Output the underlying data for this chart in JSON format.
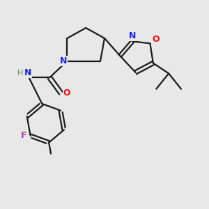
{
  "background_color": "#e8e8e8",
  "bond_color": "#1a1a1a",
  "N_color": "#2020ee",
  "O_color": "#ee1010",
  "F_color": "#aa44aa",
  "H_color": "#558855",
  "figsize": [
    3.0,
    3.0
  ],
  "dpi": 100,
  "xlim": [
    0,
    10
  ],
  "ylim": [
    0,
    10
  ]
}
